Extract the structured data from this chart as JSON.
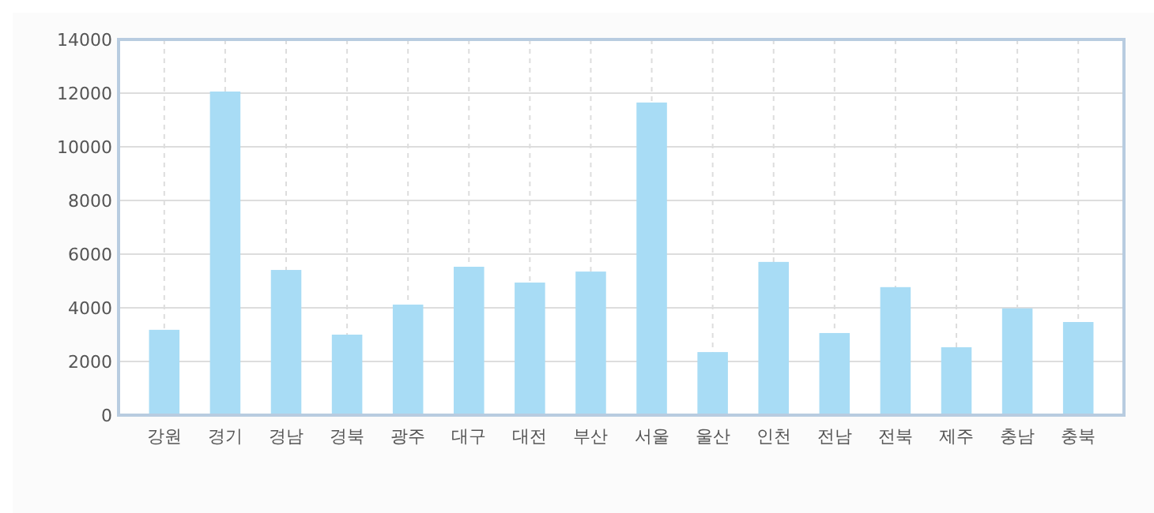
{
  "chart_data": {
    "type": "bar",
    "categories": [
      "강원",
      "경기",
      "경남",
      "경북",
      "광주",
      "대구",
      "대전",
      "부산",
      "서울",
      "울산",
      "인천",
      "전남",
      "전북",
      "제주",
      "충남",
      "충북"
    ],
    "values": [
      3180,
      12060,
      5410,
      3000,
      4120,
      5530,
      4940,
      5350,
      11650,
      2350,
      5710,
      3060,
      4770,
      2530,
      3980,
      3470
    ],
    "color": "#a8dcf5",
    "ylim": [
      0,
      14000
    ],
    "yticks": [
      0,
      2000,
      4000,
      6000,
      8000,
      10000,
      12000,
      14000
    ],
    "grid": true
  }
}
